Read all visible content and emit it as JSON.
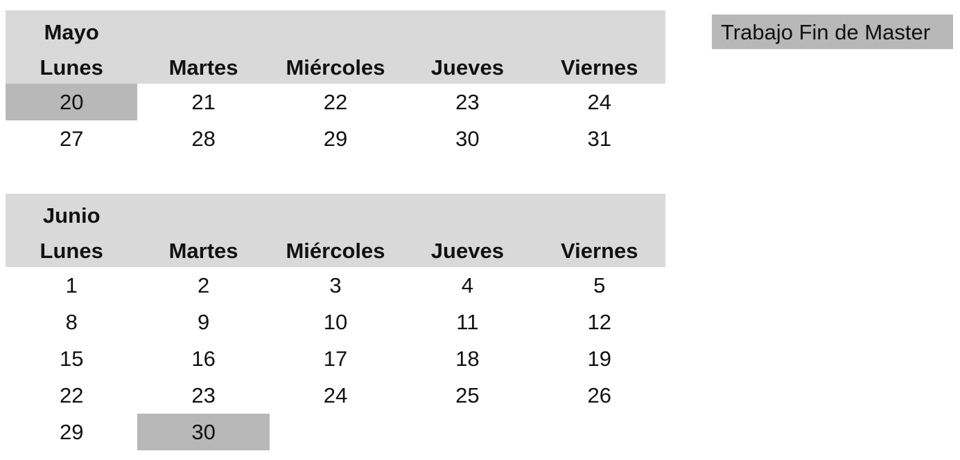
{
  "colors": {
    "header_bg": "#d9d9d9",
    "highlight_bg": "#b8b8b8"
  },
  "weekdays": [
    "Lunes",
    "Martes",
    "Miércoles",
    "Jueves",
    "Viernes"
  ],
  "legend": {
    "label": "Trabajo Fin de Master"
  },
  "calendars": [
    {
      "month": "Mayo",
      "weeks": [
        [
          {
            "day": "20",
            "highlight": true
          },
          {
            "day": "21"
          },
          {
            "day": "22"
          },
          {
            "day": "23"
          },
          {
            "day": "24"
          }
        ],
        [
          {
            "day": "27"
          },
          {
            "day": "28"
          },
          {
            "day": "29"
          },
          {
            "day": "30"
          },
          {
            "day": "31"
          }
        ]
      ]
    },
    {
      "month": "Junio",
      "weeks": [
        [
          {
            "day": "1"
          },
          {
            "day": "2"
          },
          {
            "day": "3"
          },
          {
            "day": "4"
          },
          {
            "day": "5"
          }
        ],
        [
          {
            "day": "8"
          },
          {
            "day": "9"
          },
          {
            "day": "10"
          },
          {
            "day": "11"
          },
          {
            "day": "12"
          }
        ],
        [
          {
            "day": "15"
          },
          {
            "day": "16"
          },
          {
            "day": "17"
          },
          {
            "day": "18"
          },
          {
            "day": "19"
          }
        ],
        [
          {
            "day": "22"
          },
          {
            "day": "23"
          },
          {
            "day": "24"
          },
          {
            "day": "25"
          },
          {
            "day": "26"
          }
        ],
        [
          {
            "day": "29"
          },
          {
            "day": "30",
            "highlight": true
          },
          {
            "day": ""
          },
          {
            "day": ""
          },
          {
            "day": ""
          }
        ]
      ]
    }
  ]
}
